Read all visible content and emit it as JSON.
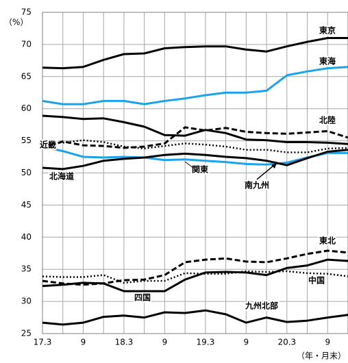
{
  "chart_data": {
    "type": "line",
    "y_label": "（%）",
    "x_label": "（年・月末）",
    "categories": [
      "17.3",
      null,
      "9",
      null,
      "18.3",
      null,
      "9",
      null,
      "19.3",
      null,
      "9",
      null,
      "20.3",
      null,
      "9",
      null
    ],
    "ylim": [
      25,
      75
    ],
    "yticks": [
      25,
      30,
      35,
      40,
      45,
      50,
      55,
      60,
      65,
      70,
      75
    ],
    "grid": true,
    "series": [
      {
        "name": "東京",
        "color": "#000000",
        "style": "solid",
        "values": [
          66.4,
          66.3,
          66.5,
          67.6,
          68.5,
          68.6,
          69.4,
          69.6,
          69.7,
          69.7,
          69.2,
          68.9,
          69.7,
          70.4,
          71.0,
          71.0
        ]
      },
      {
        "name": "東海",
        "color": "#1aa3e8",
        "style": "solid",
        "values": [
          61.2,
          60.7,
          60.7,
          61.2,
          61.2,
          60.7,
          61.2,
          61.6,
          62.1,
          62.5,
          62.5,
          62.8,
          65.2,
          65.8,
          66.3,
          66.5
        ]
      },
      {
        "name": "北陸",
        "color": "#000000",
        "style": "dashed",
        "values": [
          53.8,
          54.9,
          54.3,
          54.2,
          53.9,
          54.1,
          54.6,
          57.1,
          56.6,
          57.0,
          56.4,
          56.2,
          56.1,
          56.3,
          56.5,
          55.5
        ]
      },
      {
        "name": "近畿",
        "color": "#000000",
        "style": "solid",
        "values": [
          58.9,
          58.7,
          58.4,
          58.5,
          57.9,
          57.2,
          55.9,
          55.8,
          56.7,
          56.2,
          55.2,
          55.1,
          54.8,
          54.8,
          54.7,
          54.5
        ]
      },
      {
        "name": "北海道",
        "color": "#1aa3e8",
        "style": "solid",
        "values": [
          54.1,
          53.4,
          52.5,
          52.4,
          52.5,
          52.4,
          52.0,
          52.1,
          51.9,
          51.7,
          51.4,
          51.3,
          51.6,
          52.4,
          53.1,
          53.1
        ]
      },
      {
        "name": "関東",
        "color": "#000000",
        "style": "solid",
        "values": [
          50.8,
          50.6,
          51.1,
          51.9,
          52.2,
          52.4,
          52.8,
          53.0,
          52.8,
          52.5,
          52.3,
          51.9,
          51.2,
          52.3,
          53.3,
          53.6
        ]
      },
      {
        "name": "南九州",
        "color": "#000000",
        "style": "dotted",
        "values": [
          55.0,
          54.7,
          55.1,
          54.8,
          54.1,
          53.8,
          54.2,
          54.6,
          54.4,
          54.1,
          53.6,
          53.6,
          53.2,
          53.2,
          53.8,
          53.9
        ]
      },
      {
        "name": "東北",
        "color": "#000000",
        "style": "dashed",
        "values": [
          33.2,
          32.8,
          32.6,
          32.8,
          33.3,
          33.4,
          34.1,
          36.1,
          36.5,
          36.7,
          36.2,
          36.1,
          36.7,
          37.4,
          37.9,
          37.6
        ]
      },
      {
        "name": "中国",
        "color": "#000000",
        "style": "dotted",
        "values": [
          33.9,
          33.8,
          33.8,
          34.1,
          32.9,
          33.2,
          33.2,
          34.4,
          34.3,
          34.3,
          34.7,
          34.6,
          34.7,
          34.4,
          34.3,
          33.9
        ]
      },
      {
        "name": "四国",
        "color": "#000000",
        "style": "solid",
        "values": [
          32.4,
          32.6,
          32.9,
          32.8,
          31.6,
          31.6,
          31.6,
          33.4,
          34.5,
          34.6,
          34.5,
          34.1,
          35.2,
          35.6,
          36.5,
          36.3
        ]
      },
      {
        "name": "九州北部",
        "color": "#000000",
        "style": "solid",
        "values": [
          26.7,
          26.4,
          26.7,
          27.6,
          27.8,
          27.5,
          28.3,
          28.2,
          28.6,
          28.0,
          26.7,
          27.5,
          26.8,
          27.0,
          27.5,
          27.9
        ]
      }
    ]
  }
}
